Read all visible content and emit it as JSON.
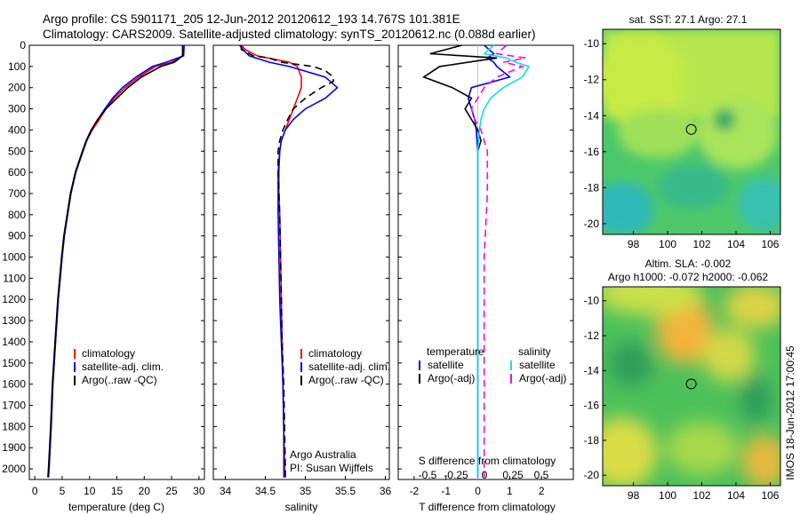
{
  "header": {
    "line1": "Argo profile: CS 5901171_205 12-Jun-2012 20120612_193 14.767S 101.381E",
    "line2": "Climatology: CARS2009. Satellite-adjusted climatology: synTS_20120612.nc (0.088d earlier)"
  },
  "colors": {
    "climatology": "#ff0000",
    "satellite": "#0000ff",
    "argo": "#000000",
    "sat_salinity": "#00e5ee",
    "argo_salinity": "#ff00ff"
  },
  "chart_data": [
    {
      "type": "line",
      "name": "temperature-panel",
      "xlabel": "temperature (deg C)",
      "ylabel": "",
      "xlim": [
        -1,
        31
      ],
      "ylim": [
        2050,
        0
      ],
      "xticks": [
        0,
        5,
        10,
        15,
        20,
        25,
        30
      ],
      "yticks": [
        0,
        100,
        200,
        300,
        400,
        500,
        600,
        700,
        800,
        900,
        1000,
        1100,
        1200,
        1300,
        1400,
        1500,
        1600,
        1700,
        1800,
        1900,
        2000
      ],
      "legend": [
        "climatology",
        "satellite-adj. clim.",
        "Argo(..raw -QC)"
      ],
      "legend_position": "lower-center",
      "series": [
        {
          "name": "climatology",
          "depth": [
            0,
            50,
            80,
            100,
            150,
            200,
            250,
            300,
            350,
            400,
            450,
            500,
            600,
            700,
            800,
            900,
            1000,
            1200,
            1400,
            1600,
            1800,
            2000,
            2040
          ],
          "values": [
            27.2,
            27.0,
            25.0,
            22.0,
            19.0,
            16.5,
            14.5,
            13.0,
            11.8,
            10.5,
            9.5,
            8.8,
            7.5,
            6.6,
            6.0,
            5.4,
            5.0,
            4.3,
            3.8,
            3.3,
            3.0,
            2.6,
            2.5
          ]
        },
        {
          "name": "satellite-adj. clim.",
          "depth": [
            0,
            50,
            80,
            100,
            150,
            200,
            250,
            300,
            350,
            400,
            450,
            500,
            600,
            700,
            800,
            900,
            1000,
            1200,
            1400,
            1600,
            1800,
            2000,
            2040
          ],
          "values": [
            27.3,
            27.2,
            24.0,
            21.5,
            18.5,
            16.0,
            14.2,
            12.8,
            11.5,
            10.4,
            9.5,
            8.8,
            7.5,
            6.6,
            6.0,
            5.4,
            5.0,
            4.3,
            3.8,
            3.3,
            3.0,
            2.6,
            2.5
          ]
        },
        {
          "name": "Argo(..raw -QC)",
          "depth": [
            0,
            50,
            80,
            100,
            150,
            200,
            250,
            300,
            350,
            400,
            450,
            500,
            600,
            700,
            800,
            900,
            1000,
            1200,
            1400,
            1600,
            1800,
            2000,
            2040
          ],
          "values": [
            27.0,
            27.0,
            25.5,
            23.0,
            19.5,
            17.0,
            15.0,
            13.0,
            11.5,
            10.3,
            9.4,
            8.7,
            7.4,
            6.5,
            5.9,
            5.3,
            4.9,
            4.2,
            3.7,
            3.2,
            2.9,
            2.5,
            2.4
          ]
        }
      ]
    },
    {
      "type": "line",
      "name": "salinity-panel",
      "xlabel": "salinity",
      "xlim": [
        33.85,
        36.05
      ],
      "ylim": [
        2050,
        0
      ],
      "xticks": [
        34,
        34.5,
        35,
        35.5,
        36
      ],
      "legend": [
        "climatology",
        "satellite-adj. clim.",
        "Argo(..raw -QC)"
      ],
      "legend_position": "lower-center",
      "annotation": [
        "Argo Australia",
        "PI: Susan Wijffels"
      ],
      "series": [
        {
          "name": "climatology",
          "depth": [
            0,
            20,
            50,
            80,
            100,
            150,
            200,
            250,
            300,
            350,
            400,
            450,
            500,
            600,
            700,
            800,
            1000,
            1200,
            1400,
            1600,
            1800,
            2000,
            2040
          ],
          "values": [
            34.2,
            34.25,
            34.4,
            34.8,
            34.9,
            34.95,
            34.95,
            34.9,
            34.85,
            34.8,
            34.75,
            34.7,
            34.68,
            34.67,
            34.67,
            34.68,
            34.69,
            34.7,
            34.71,
            34.72,
            34.73,
            34.73,
            34.73
          ]
        },
        {
          "name": "satellite-adj. clim.",
          "depth": [
            0,
            20,
            50,
            80,
            100,
            150,
            200,
            250,
            300,
            350,
            400,
            450,
            500,
            600,
            700,
            800,
            1000,
            1200,
            1400,
            1600,
            1800,
            2000,
            2040
          ],
          "values": [
            34.18,
            34.22,
            34.3,
            34.55,
            34.8,
            35.25,
            35.4,
            35.25,
            35.0,
            34.85,
            34.75,
            34.7,
            34.68,
            34.66,
            34.66,
            34.66,
            34.67,
            34.68,
            34.7,
            34.72,
            34.73,
            34.74,
            34.74
          ]
        },
        {
          "name": "Argo(..raw -QC)",
          "depth": [
            0,
            20,
            50,
            60,
            80,
            100,
            120,
            150,
            170,
            200,
            250,
            300,
            350,
            400,
            450,
            500,
            600,
            700,
            800,
            1000,
            1200,
            1400,
            1600,
            1800,
            2000,
            2040
          ],
          "values": [
            34.2,
            34.2,
            34.35,
            34.55,
            34.7,
            35.1,
            35.25,
            35.35,
            35.35,
            35.2,
            35.0,
            34.85,
            34.78,
            34.72,
            34.68,
            34.66,
            34.66,
            34.67,
            34.68,
            34.69,
            34.7,
            34.71,
            34.73,
            34.74,
            34.75,
            34.75
          ]
        }
      ]
    },
    {
      "type": "line",
      "name": "difference-panel",
      "xlabel": "T difference from climatology",
      "xlabel_top": "S difference from climatology",
      "xlim": [
        -2.5,
        3.0
      ],
      "ylim": [
        2050,
        0
      ],
      "xticks": [
        -2,
        -1,
        0,
        1,
        2
      ],
      "s_ticks": [
        "-0.5",
        "-0.25",
        "0",
        "0.25",
        "0.5"
      ],
      "legend": [
        "temperature",
        "satellite",
        "Argo(-adj)",
        "salinity",
        "satellite",
        "Argo(-adj)"
      ],
      "legend_position": "lower-center",
      "series": [
        {
          "name": "satellite",
          "depth": [
            0,
            40,
            60,
            80,
            100,
            150,
            200,
            250,
            300,
            350,
            400,
            500,
            700,
            1000,
            1300,
            1600,
            2000,
            2040
          ],
          "values": [
            0.2,
            0.5,
            0.3,
            0.5,
            0.6,
            1.0,
            -0.2,
            -0.3,
            -0.2,
            -0.1,
            -0.05,
            0,
            0,
            0,
            0,
            0,
            0,
            0
          ]
        },
        {
          "name": "Argo(-adj)",
          "depth": [
            0,
            40,
            60,
            80,
            100,
            150,
            200,
            250,
            300,
            350,
            400,
            450,
            500
          ],
          "values": [
            -0.5,
            -1.5,
            0.6,
            -0.3,
            -1.2,
            -1.7,
            -0.8,
            -0.2,
            -0.4,
            -0.2,
            0.0,
            0.1,
            0.0
          ]
        },
        {
          "name": "satellite salinity",
          "depth": [
            0,
            40,
            60,
            80,
            100,
            150,
            200,
            250,
            300,
            350,
            400,
            500,
            700,
            1000,
            1300,
            1600,
            2000,
            2040
          ],
          "values": [
            0.5,
            0.2,
            0.9,
            1.2,
            1.6,
            1.4,
            0.8,
            0.4,
            0.2,
            0.1,
            0.05,
            0,
            0,
            0,
            0,
            0,
            0,
            0
          ]
        },
        {
          "name": "Argo(-adj) salinity",
          "depth": [
            0,
            40,
            60,
            80,
            100,
            150,
            200,
            250,
            300,
            350,
            400,
            500,
            700,
            1000,
            1300,
            1600,
            2000,
            2040
          ],
          "values": [
            0.9,
            0.6,
            1.5,
            0.8,
            1.4,
            0.6,
            0.2,
            0.0,
            -0.2,
            -0.1,
            0.1,
            0.3,
            0.3,
            0.2,
            0.2,
            0.2,
            0.2,
            0.2
          ]
        }
      ]
    },
    {
      "type": "heatmap",
      "name": "sst-map",
      "title": "sat. SST: 27.1  Argo: 27.1",
      "xticks": [
        "98",
        "100",
        "102",
        "104",
        "106"
      ],
      "yticks": [
        "-10",
        "-12",
        "-14",
        "-16",
        "-18",
        "-20"
      ],
      "xlim": [
        96.2,
        106.6
      ],
      "ylim": [
        -20.6,
        -9.2
      ],
      "marker": {
        "lon": 101.381,
        "lat": -14.767
      }
    },
    {
      "type": "heatmap",
      "name": "sla-map",
      "title": "Altim. SLA: -0.002",
      "subtitle": "Argo h1000: -0.072 h2000: -0.062",
      "xticks": [
        "98",
        "100",
        "102",
        "104",
        "106"
      ],
      "yticks": [
        "-10",
        "-12",
        "-14",
        "-16",
        "-18",
        "-20"
      ],
      "xlim": [
        96.2,
        106.6
      ],
      "ylim": [
        -20.6,
        -9.2
      ],
      "marker": {
        "lon": 101.381,
        "lat": -14.767
      },
      "side_label": "IMOS 18-Jun-2012 17:00:45"
    }
  ]
}
